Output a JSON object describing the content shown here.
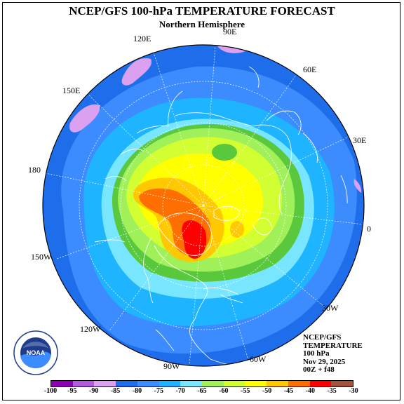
{
  "title": "NCEP/GFS 100-hPa TEMPERATURE FORECAST",
  "subtitle": "Northern Hemisphere",
  "longitude_labels": [
    {
      "id": "lon-90e",
      "text": "90E"
    },
    {
      "id": "lon-120e",
      "text": "120E"
    },
    {
      "id": "lon-60e",
      "text": "60E"
    },
    {
      "id": "lon-150e",
      "text": "150E"
    },
    {
      "id": "lon-30e",
      "text": "30E"
    },
    {
      "id": "lon-180",
      "text": "180"
    },
    {
      "id": "lon-0",
      "text": "0"
    },
    {
      "id": "lon-150w",
      "text": "150W"
    },
    {
      "id": "lon-30w",
      "text": "30W"
    },
    {
      "id": "lon-120w",
      "text": "120W"
    },
    {
      "id": "lon-60w",
      "text": "60W"
    },
    {
      "id": "lon-90w",
      "text": "90W"
    }
  ],
  "info_block": {
    "line1": "NCEP/GFS",
    "line2": "TEMPERATURE",
    "line3": "100 hPa",
    "line4": "Nov 29, 2025",
    "line5": "00Z + f48"
  },
  "colorbar": {
    "ticks": [
      "-100",
      "-95",
      "-90",
      "-85",
      "-80",
      "-75",
      "-70",
      "-65",
      "-60",
      "-55",
      "-50",
      "-45",
      "-40",
      "-35",
      "-30"
    ],
    "colors": [
      "#8c00b4",
      "#b45adc",
      "#dca0f0",
      "#1e6eeb",
      "#3c8cff",
      "#1eb4ff",
      "#78e6ff",
      "#a0f05a",
      "#d2ff32",
      "#ffff00",
      "#ffc800",
      "#ff6e00",
      "#ff0000",
      "#a0523c"
    ]
  },
  "map_colors": {
    "level_m85": "#dca0f0",
    "level_m80": "#1e6eeb",
    "level_m75": "#3c8cff",
    "level_m70": "#1eb4ff",
    "level_m65": "#78e6ff",
    "level_m60": "#5ac83c",
    "level_m55": "#a0f05a",
    "level_m50": "#d2ff32",
    "level_m45": "#ffff00",
    "level_m40": "#ffc800",
    "level_m35": "#ff6e00",
    "level_m30": "#ff0000"
  },
  "logo": {
    "text": "NOAA"
  }
}
